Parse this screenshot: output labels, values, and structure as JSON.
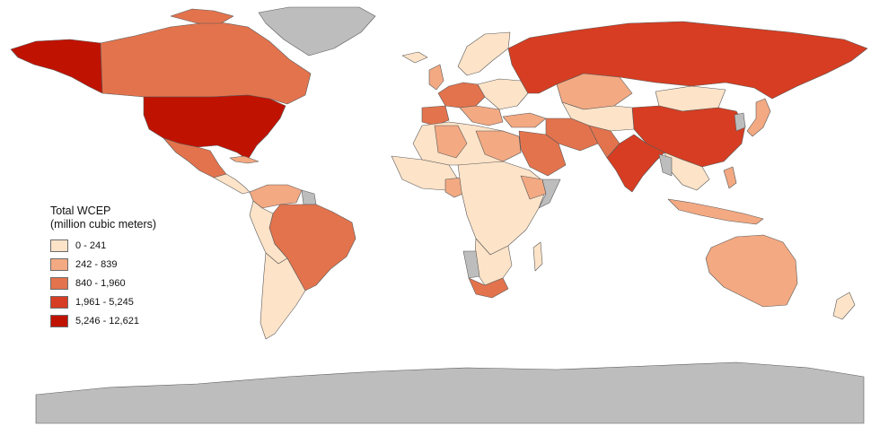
{
  "legend": {
    "title_line1": "Total WCEP",
    "title_line2": "(million cubic meters)",
    "classes": [
      {
        "label": "0 - 241",
        "color": "#fde3c8"
      },
      {
        "label": "242 - 839",
        "color": "#f3a982"
      },
      {
        "label": "840 - 1,960",
        "color": "#e3734d"
      },
      {
        "label": "1,961 - 5,245",
        "color": "#d63d22"
      },
      {
        "label": "5,246 - 12,621",
        "color": "#c01200"
      }
    ],
    "no_data_color": "#bdbdbd"
  }
}
